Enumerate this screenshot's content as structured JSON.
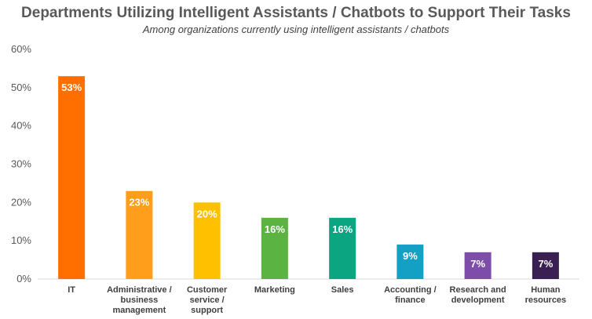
{
  "chart_data": {
    "type": "bar",
    "title": "Departments Utilizing Intelligent Assistants / Chatbots to Support Their Tasks",
    "subtitle": "Among organizations currently using intelligent assistants / chatbots",
    "categories": [
      [
        "IT"
      ],
      [
        "Administrative /",
        "business",
        "management"
      ],
      [
        "Customer",
        "service /",
        "support"
      ],
      [
        "Marketing"
      ],
      [
        "Sales"
      ],
      [
        "Accounting /",
        "finance"
      ],
      [
        "Research and",
        "development"
      ],
      [
        "Human",
        "resources"
      ]
    ],
    "values": [
      53,
      23,
      20,
      16,
      16,
      9,
      7,
      7
    ],
    "data_labels": [
      "53%",
      "23%",
      "20%",
      "16%",
      "16%",
      "9%",
      "7%",
      "7%"
    ],
    "colors": [
      "#FF6F00",
      "#FF9E1B",
      "#FFC000",
      "#5BB342",
      "#0BA582",
      "#13A0C4",
      "#7E4DAA",
      "#3A1F52"
    ],
    "ylim": [
      0,
      60
    ],
    "yticks": [
      0,
      10,
      20,
      30,
      40,
      50,
      60
    ],
    "ytick_labels": [
      "0%",
      "10%",
      "20%",
      "30%",
      "40%",
      "50%",
      "60%"
    ],
    "grid": false,
    "legend": "none"
  }
}
